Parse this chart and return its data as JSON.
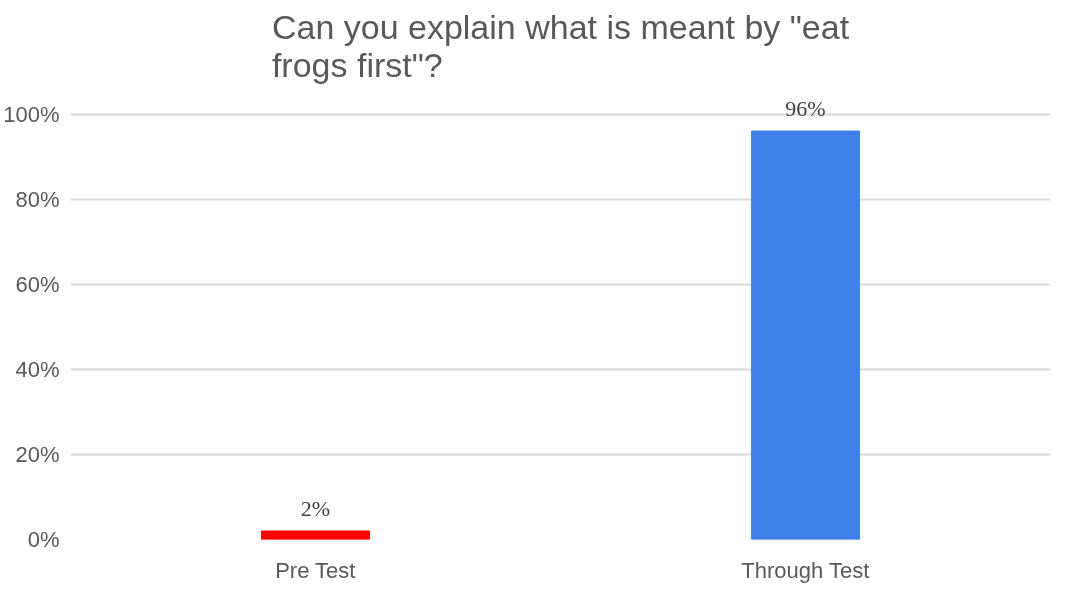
{
  "chart_data": {
    "type": "bar",
    "title": "Can you explain what is meant by \"eat frogs first\"?",
    "categories": [
      "Pre Test",
      "Through Test"
    ],
    "values": [
      2,
      96
    ],
    "colors": [
      "#ff0000",
      "#3f7fea"
    ],
    "value_labels": [
      "2%",
      "96%"
    ],
    "ylim": [
      0,
      100
    ],
    "yticks": [
      {
        "value": 0,
        "label": "0%"
      },
      {
        "value": 20,
        "label": "20%"
      },
      {
        "value": 40,
        "label": "40%"
      },
      {
        "value": 60,
        "label": "60%"
      },
      {
        "value": 80,
        "label": "80%"
      },
      {
        "value": 100,
        "label": "100%"
      }
    ],
    "grid": "y"
  }
}
